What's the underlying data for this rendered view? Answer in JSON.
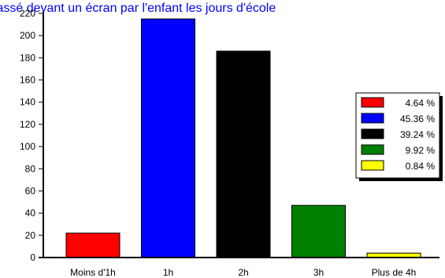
{
  "colors": {
    "title": "#0000ff",
    "axis": "#000000",
    "background": "#ffffff",
    "legend_border": "#000000",
    "legend_shadow": "#000000"
  },
  "chart_data": {
    "type": "bar",
    "title": "Temps passé devant un écran par l'enfant les jours d'école",
    "xlabel": "",
    "ylabel": "",
    "categories": [
      "Moins d'1h",
      "1h",
      "2h",
      "3h",
      "Plus de 4h"
    ],
    "values": [
      22,
      215,
      186,
      47,
      4
    ],
    "colors": [
      "#ff0000",
      "#0000ff",
      "#000000",
      "#008000",
      "#ffff00"
    ],
    "ylim": [
      0,
      220
    ],
    "yticks": [
      0,
      20,
      40,
      60,
      80,
      100,
      120,
      140,
      160,
      180,
      200,
      220
    ],
    "grid": false,
    "legend": {
      "placement": "right",
      "entries": [
        "4.64 %",
        "45.36 %",
        "39.24 %",
        "9.92 %",
        "0.84 %"
      ]
    }
  }
}
